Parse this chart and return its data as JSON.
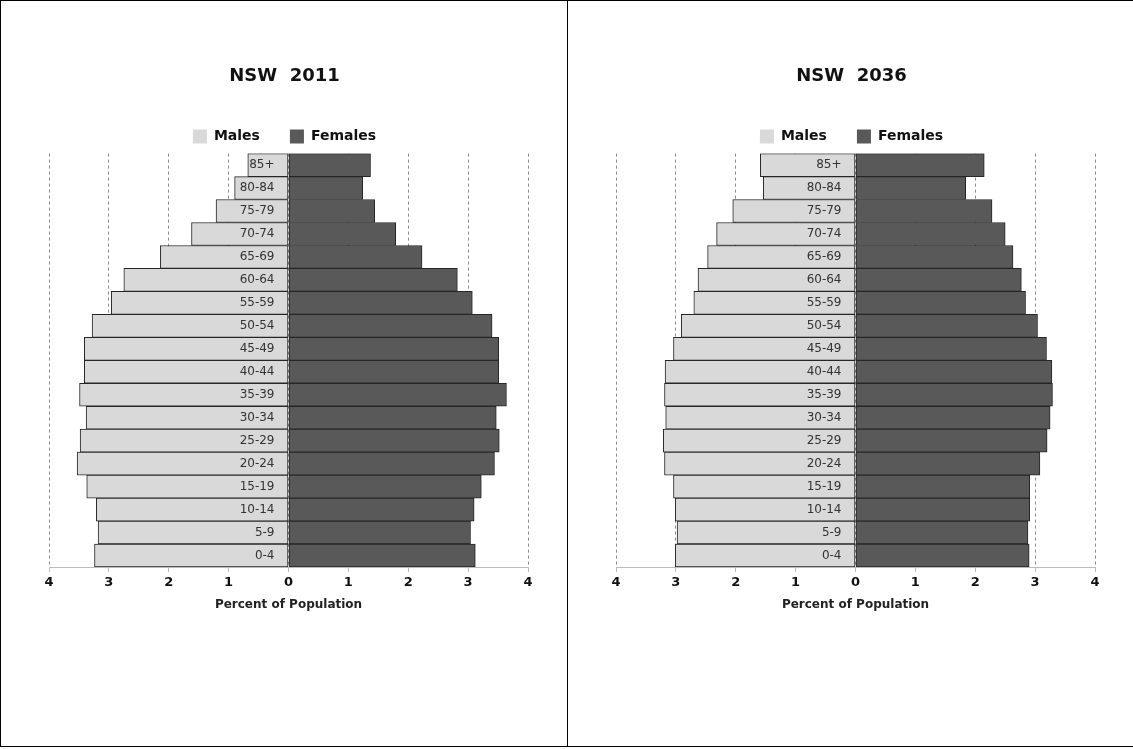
{
  "chart_data": [
    {
      "type": "bar",
      "orientation": "horizontal",
      "stacked": true,
      "title": "NSW  2011",
      "xlabel": "Percent of Population",
      "categories": [
        "85+",
        "80-84",
        "75-79",
        "70-74",
        "65-69",
        "60-64",
        "55-59",
        "50-54",
        "45-49",
        "40-44",
        "35-39",
        "30-34",
        "25-29",
        "20-24",
        "15-19",
        "10-14",
        "5-9",
        "0-4"
      ],
      "series": [
        {
          "name": "Males",
          "color": "#d9d9d9",
          "values": [
            -0.68,
            -0.9,
            -1.21,
            -1.62,
            -2.14,
            -2.75,
            -2.96,
            -3.28,
            -3.41,
            -3.41,
            -3.49,
            -3.38,
            -3.48,
            -3.53,
            -3.37,
            -3.21,
            -3.18,
            -3.24
          ]
        },
        {
          "name": "Females",
          "color": "#595959",
          "values": [
            1.37,
            1.24,
            1.44,
            1.79,
            2.23,
            2.82,
            3.07,
            3.4,
            3.51,
            3.51,
            3.64,
            3.47,
            3.52,
            3.44,
            3.22,
            3.1,
            3.04,
            3.12
          ]
        }
      ],
      "xlim": [
        -4,
        4
      ],
      "xticks": [
        {
          "value": -4,
          "label": "4"
        },
        {
          "value": -3,
          "label": "3"
        },
        {
          "value": -2,
          "label": "2"
        },
        {
          "value": -1,
          "label": "1"
        },
        0,
        1,
        2,
        3,
        4
      ],
      "grid": "x",
      "legend": "top"
    },
    {
      "type": "bar",
      "orientation": "horizontal",
      "stacked": true,
      "title": "NSW  2036",
      "xlabel": "Percent of Population",
      "categories": [
        "85+",
        "80-84",
        "75-79",
        "70-74",
        "65-69",
        "60-64",
        "55-59",
        "50-54",
        "45-49",
        "40-44",
        "35-39",
        "30-34",
        "25-29",
        "20-24",
        "15-19",
        "10-14",
        "5-9",
        "0-4"
      ],
      "series": [
        {
          "name": "Males",
          "color": "#d9d9d9",
          "values": [
            -1.59,
            -1.54,
            -2.05,
            -2.32,
            -2.47,
            -2.63,
            -2.7,
            -2.91,
            -3.04,
            -3.18,
            -3.19,
            -3.17,
            -3.21,
            -3.19,
            -3.04,
            -3.01,
            -2.98,
            -3.01
          ]
        },
        {
          "name": "Females",
          "color": "#595959",
          "values": [
            2.15,
            1.84,
            2.28,
            2.5,
            2.63,
            2.77,
            2.84,
            3.04,
            3.19,
            3.28,
            3.29,
            3.25,
            3.2,
            3.08,
            2.91,
            2.91,
            2.88,
            2.9
          ]
        }
      ],
      "xlim": [
        -4,
        4
      ],
      "xticks": [
        {
          "value": -4,
          "label": "4"
        },
        {
          "value": -3,
          "label": "3"
        },
        {
          "value": -2,
          "label": "2"
        },
        {
          "value": -1,
          "label": "1"
        },
        0,
        1,
        2,
        3,
        4
      ],
      "grid": "x",
      "legend": "top"
    }
  ]
}
